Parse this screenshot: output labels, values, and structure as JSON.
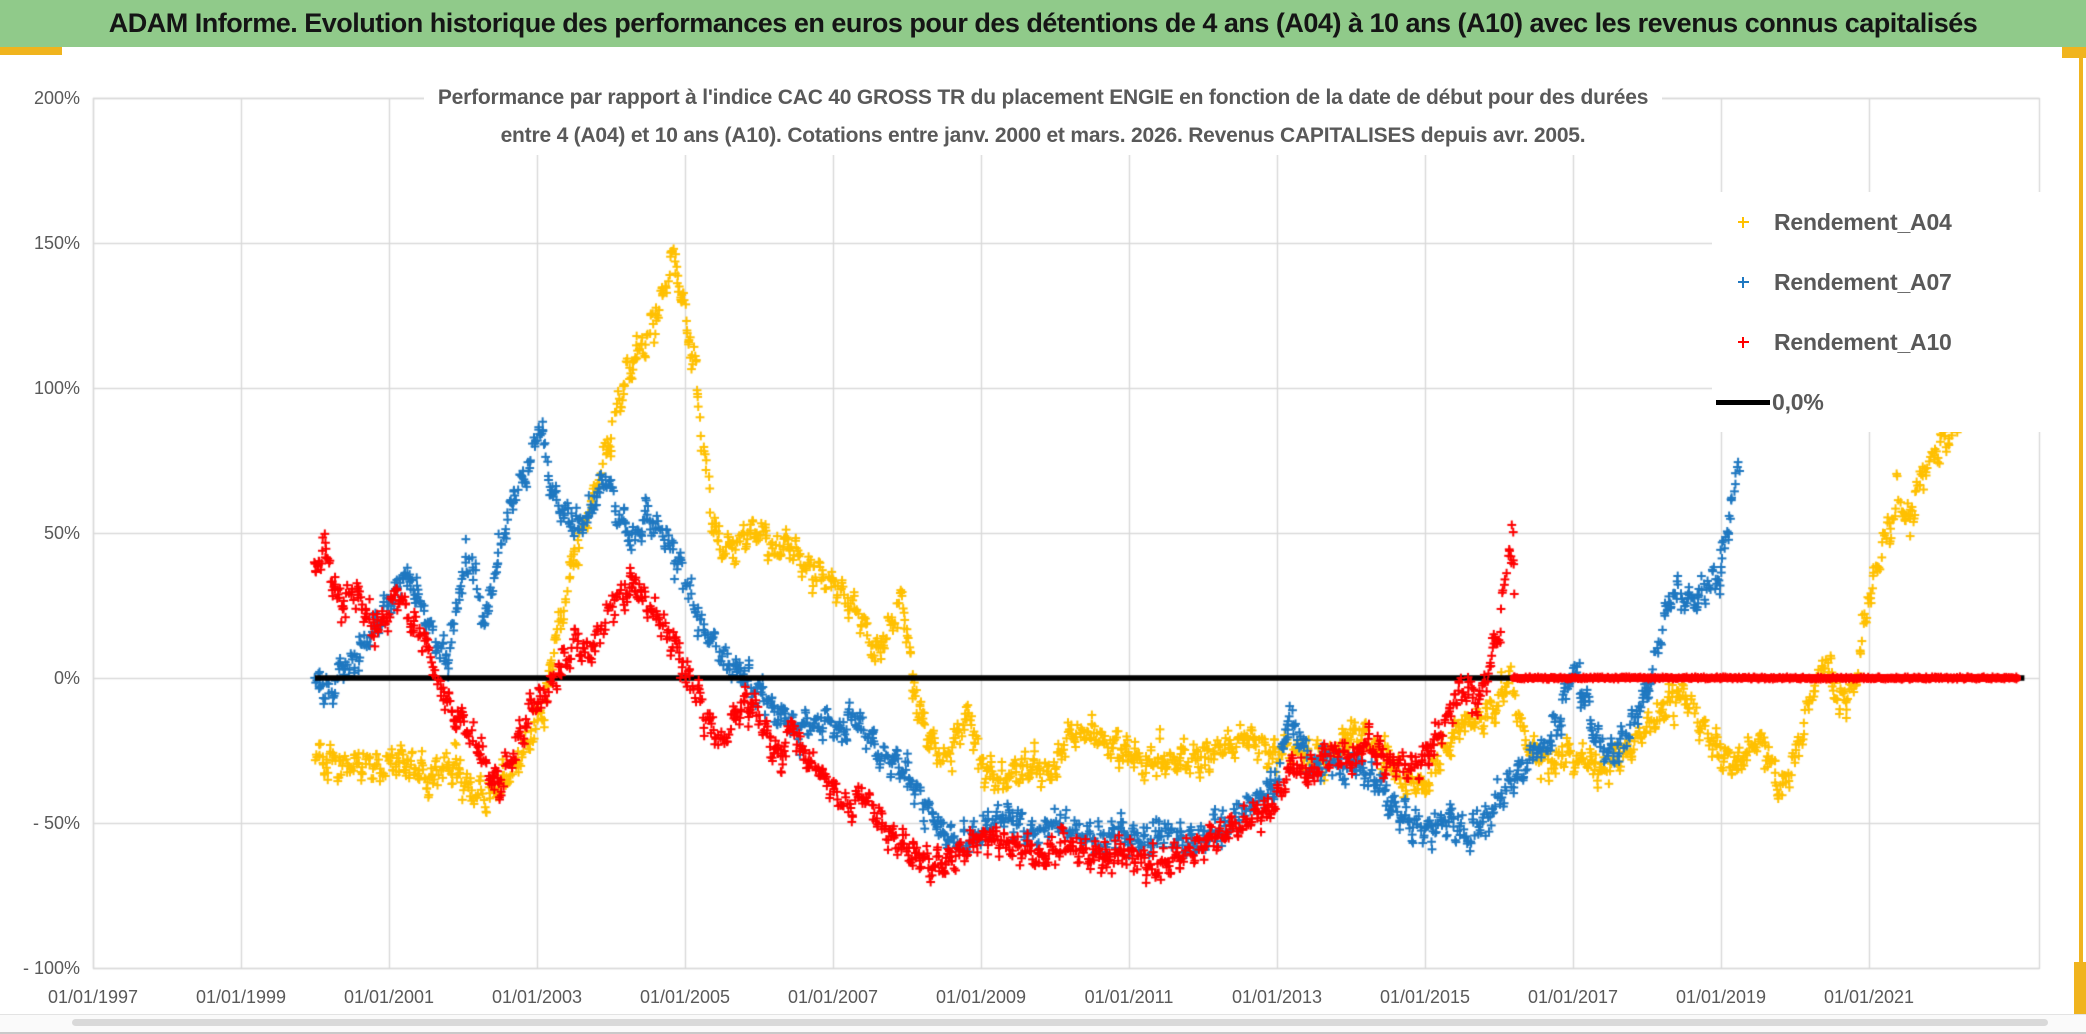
{
  "header": {
    "title": "ADAM Informe. Evolution historique des performances en euros pour des détentions de 4 ans (A04) à 10 ans (A10) avec les revenus connus capitalisés",
    "bg_color": "#90CA8A",
    "accent_color": "#F0B41E"
  },
  "chart_data": {
    "type": "scatter",
    "title_lines": [
      "Performance par rapport à l'indice CAC 40 GROSS TR  du placement ENGIE en fonction de la date de début pour des durées",
      "entre 4 (A04) et 10 ans (A10). Cotations entre janv. 2000 et mars. 2026. Revenus CAPITALISES depuis avr. 2005."
    ],
    "grid": true,
    "gridline_color": "#D9D9D9",
    "x_axis": {
      "range": [
        1997.0,
        2023.35
      ],
      "tick_years": [
        1997,
        1999,
        2001,
        2003,
        2005,
        2007,
        2009,
        2011,
        2013,
        2015,
        2017,
        2019,
        2021
      ],
      "tick_labels": [
        "01/01/1997",
        "01/01/1999",
        "01/01/2001",
        "01/01/2003",
        "01/01/2005",
        "01/01/2007",
        "01/01/2009",
        "01/01/2011",
        "01/01/2013",
        "01/01/2015",
        "01/01/2017",
        "01/01/2019",
        "01/01/2021"
      ]
    },
    "y_axis": {
      "range": [
        -100,
        200
      ],
      "unit": "%",
      "tick_values": [
        200,
        150,
        100,
        50,
        0,
        -50,
        -100
      ],
      "tick_labels": [
        "200%",
        "150%",
        "100%",
        "50%",
        "0%",
        "- 50%",
        "- 100%"
      ]
    },
    "legend": [
      {
        "label": "Rendement_A04",
        "color": "#FFC000",
        "marker": "plus"
      },
      {
        "label": "Rendement_A07",
        "color": "#1F78C1",
        "marker": "plus"
      },
      {
        "label": "Rendement_A10",
        "color": "#FF0000",
        "marker": "plus"
      },
      {
        "label": "0,0%",
        "color": "#000000",
        "marker": "line"
      }
    ],
    "zero_line": {
      "value": 0,
      "x_start": 2000.0,
      "x_end": 2023.1,
      "color": "#000000"
    },
    "series": [
      {
        "name": "Rendement_A04",
        "color": "#FFC000",
        "marker": "plus",
        "anchors": [
          [
            2000.0,
            -25
          ],
          [
            2000.3,
            -30
          ],
          [
            2000.6,
            -28
          ],
          [
            2000.9,
            -32
          ],
          [
            2001.2,
            -28
          ],
          [
            2001.5,
            -35
          ],
          [
            2001.8,
            -30
          ],
          [
            2002.0,
            -35
          ],
          [
            2002.3,
            -42
          ],
          [
            2002.6,
            -35
          ],
          [
            2002.9,
            -22
          ],
          [
            2003.1,
            -8
          ],
          [
            2003.3,
            18
          ],
          [
            2003.5,
            42
          ],
          [
            2003.7,
            58
          ],
          [
            2003.9,
            75
          ],
          [
            2004.1,
            95
          ],
          [
            2004.3,
            110
          ],
          [
            2004.5,
            118
          ],
          [
            2004.7,
            132
          ],
          [
            2004.85,
            148
          ],
          [
            2005.0,
            126
          ],
          [
            2005.15,
            103
          ],
          [
            2005.3,
            68
          ],
          [
            2005.45,
            46
          ],
          [
            2005.65,
            44
          ],
          [
            2005.85,
            50
          ],
          [
            2006.0,
            52
          ],
          [
            2006.2,
            44
          ],
          [
            2006.4,
            47
          ],
          [
            2006.6,
            40
          ],
          [
            2006.8,
            37
          ],
          [
            2007.0,
            33
          ],
          [
            2007.2,
            27
          ],
          [
            2007.4,
            20
          ],
          [
            2007.6,
            9
          ],
          [
            2007.8,
            20
          ],
          [
            2007.95,
            28
          ],
          [
            2008.1,
            -6
          ],
          [
            2008.3,
            -20
          ],
          [
            2008.5,
            -28
          ],
          [
            2008.7,
            -18
          ],
          [
            2008.85,
            -13
          ],
          [
            2009.0,
            -30
          ],
          [
            2009.3,
            -36
          ],
          [
            2009.6,
            -30
          ],
          [
            2009.9,
            -33
          ],
          [
            2010.2,
            -20
          ],
          [
            2010.5,
            -18
          ],
          [
            2010.8,
            -24
          ],
          [
            2011.1,
            -28
          ],
          [
            2011.4,
            -30
          ],
          [
            2011.7,
            -28
          ],
          [
            2012.0,
            -27
          ],
          [
            2012.3,
            -24
          ],
          [
            2012.6,
            -20
          ],
          [
            2012.9,
            -26
          ],
          [
            2013.2,
            -25
          ],
          [
            2013.5,
            -29
          ],
          [
            2013.8,
            -25
          ],
          [
            2014.1,
            -18
          ],
          [
            2014.4,
            -25
          ],
          [
            2014.7,
            -35
          ],
          [
            2015.0,
            -38
          ],
          [
            2015.2,
            -28
          ],
          [
            2015.5,
            -16
          ],
          [
            2015.8,
            -14
          ],
          [
            2016.0,
            -8
          ],
          [
            2016.15,
            0
          ],
          [
            2016.35,
            -22
          ],
          [
            2016.6,
            -30
          ],
          [
            2016.9,
            -26
          ],
          [
            2017.1,
            -28
          ],
          [
            2017.4,
            -32
          ],
          [
            2017.7,
            -25
          ],
          [
            2017.9,
            -20
          ],
          [
            2018.1,
            -14
          ],
          [
            2018.45,
            -4
          ],
          [
            2018.7,
            -15
          ],
          [
            2019.0,
            -26
          ],
          [
            2019.2,
            -30
          ],
          [
            2019.5,
            -20
          ],
          [
            2019.8,
            -38
          ],
          [
            2020.0,
            -28
          ],
          [
            2020.2,
            -8
          ],
          [
            2020.4,
            5
          ],
          [
            2020.6,
            -6
          ],
          [
            2020.8,
            -4
          ],
          [
            2021.0,
            28
          ],
          [
            2021.2,
            46
          ],
          [
            2021.4,
            60
          ],
          [
            2021.55,
            54
          ],
          [
            2021.7,
            68
          ],
          [
            2021.85,
            76
          ],
          [
            2022.0,
            82
          ],
          [
            2022.2,
            88
          ]
        ]
      },
      {
        "name": "Rendement_A07",
        "color": "#1F78C1",
        "marker": "plus",
        "anchors": [
          [
            2000.0,
            0
          ],
          [
            2000.2,
            -5
          ],
          [
            2000.4,
            3
          ],
          [
            2000.6,
            8
          ],
          [
            2000.8,
            18
          ],
          [
            2001.0,
            25
          ],
          [
            2001.2,
            35
          ],
          [
            2001.4,
            28
          ],
          [
            2001.6,
            14
          ],
          [
            2001.8,
            5
          ],
          [
            2001.95,
            30
          ],
          [
            2002.1,
            42
          ],
          [
            2002.3,
            20
          ],
          [
            2002.5,
            45
          ],
          [
            2002.7,
            64
          ],
          [
            2002.9,
            74
          ],
          [
            2003.05,
            88
          ],
          [
            2003.2,
            64
          ],
          [
            2003.4,
            55
          ],
          [
            2003.6,
            52
          ],
          [
            2003.8,
            62
          ],
          [
            2003.95,
            70
          ],
          [
            2004.1,
            55
          ],
          [
            2004.3,
            48
          ],
          [
            2004.5,
            55
          ],
          [
            2004.7,
            50
          ],
          [
            2004.9,
            40
          ],
          [
            2005.1,
            28
          ],
          [
            2005.25,
            16
          ],
          [
            2005.4,
            12
          ],
          [
            2005.6,
            4
          ],
          [
            2005.8,
            1
          ],
          [
            2006.0,
            -5
          ],
          [
            2006.3,
            -13
          ],
          [
            2006.6,
            -18
          ],
          [
            2006.9,
            -14
          ],
          [
            2007.1,
            -20
          ],
          [
            2007.3,
            -14
          ],
          [
            2007.6,
            -25
          ],
          [
            2007.9,
            -30
          ],
          [
            2008.2,
            -42
          ],
          [
            2008.5,
            -53
          ],
          [
            2008.8,
            -58
          ],
          [
            2009.1,
            -50
          ],
          [
            2009.4,
            -48
          ],
          [
            2009.7,
            -55
          ],
          [
            2010.0,
            -50
          ],
          [
            2010.3,
            -53
          ],
          [
            2010.6,
            -57
          ],
          [
            2010.9,
            -52
          ],
          [
            2011.2,
            -57
          ],
          [
            2011.5,
            -53
          ],
          [
            2011.8,
            -57
          ],
          [
            2012.1,
            -54
          ],
          [
            2012.4,
            -48
          ],
          [
            2012.7,
            -43
          ],
          [
            2013.0,
            -36
          ],
          [
            2013.15,
            -12
          ],
          [
            2013.3,
            -22
          ],
          [
            2013.5,
            -32
          ],
          [
            2013.7,
            -28
          ],
          [
            2013.9,
            -32
          ],
          [
            2014.1,
            -30
          ],
          [
            2014.4,
            -38
          ],
          [
            2014.7,
            -48
          ],
          [
            2015.0,
            -53
          ],
          [
            2015.3,
            -49
          ],
          [
            2015.6,
            -55
          ],
          [
            2015.9,
            -47
          ],
          [
            2016.1,
            -38
          ],
          [
            2016.4,
            -27
          ],
          [
            2016.6,
            -24
          ],
          [
            2016.85,
            -12
          ],
          [
            2017.0,
            4
          ],
          [
            2017.15,
            -6
          ],
          [
            2017.3,
            -20
          ],
          [
            2017.5,
            -27
          ],
          [
            2017.7,
            -21
          ],
          [
            2017.9,
            -11
          ],
          [
            2018.05,
            0
          ],
          [
            2018.2,
            16
          ],
          [
            2018.35,
            30
          ],
          [
            2018.55,
            26
          ],
          [
            2018.75,
            30
          ],
          [
            2018.95,
            34
          ],
          [
            2019.05,
            45
          ],
          [
            2019.15,
            60
          ],
          [
            2019.25,
            74
          ]
        ]
      },
      {
        "name": "Rendement_A10",
        "color": "#FF0000",
        "marker": "plus",
        "anchors": [
          [
            2000.0,
            38
          ],
          [
            2000.15,
            45
          ],
          [
            2000.3,
            25
          ],
          [
            2000.5,
            30
          ],
          [
            2000.7,
            22
          ],
          [
            2000.9,
            18
          ],
          [
            2001.1,
            30
          ],
          [
            2001.3,
            20
          ],
          [
            2001.5,
            12
          ],
          [
            2001.7,
            -5
          ],
          [
            2001.9,
            -12
          ],
          [
            2002.1,
            -20
          ],
          [
            2002.3,
            -30
          ],
          [
            2002.5,
            -38
          ],
          [
            2002.7,
            -25
          ],
          [
            2002.9,
            -12
          ],
          [
            2003.1,
            -5
          ],
          [
            2003.3,
            2
          ],
          [
            2003.5,
            12
          ],
          [
            2003.7,
            8
          ],
          [
            2003.9,
            18
          ],
          [
            2004.1,
            28
          ],
          [
            2004.3,
            33
          ],
          [
            2004.5,
            25
          ],
          [
            2004.7,
            18
          ],
          [
            2004.9,
            10
          ],
          [
            2005.1,
            -2
          ],
          [
            2005.3,
            -14
          ],
          [
            2005.5,
            -22
          ],
          [
            2005.7,
            -12
          ],
          [
            2005.9,
            -8
          ],
          [
            2006.1,
            -20
          ],
          [
            2006.3,
            -28
          ],
          [
            2006.45,
            -16
          ],
          [
            2006.6,
            -28
          ],
          [
            2006.8,
            -32
          ],
          [
            2007.0,
            -38
          ],
          [
            2007.2,
            -44
          ],
          [
            2007.4,
            -40
          ],
          [
            2007.6,
            -48
          ],
          [
            2007.8,
            -55
          ],
          [
            2008.0,
            -58
          ],
          [
            2008.3,
            -66
          ],
          [
            2008.6,
            -62
          ],
          [
            2008.9,
            -57
          ],
          [
            2009.2,
            -54
          ],
          [
            2009.5,
            -58
          ],
          [
            2009.8,
            -62
          ],
          [
            2010.1,
            -57
          ],
          [
            2010.4,
            -60
          ],
          [
            2010.7,
            -63
          ],
          [
            2011.0,
            -60
          ],
          [
            2011.3,
            -66
          ],
          [
            2011.6,
            -62
          ],
          [
            2011.9,
            -58
          ],
          [
            2012.2,
            -55
          ],
          [
            2012.5,
            -50
          ],
          [
            2012.8,
            -47
          ],
          [
            2013.0,
            -43
          ],
          [
            2013.2,
            -30
          ],
          [
            2013.4,
            -34
          ],
          [
            2013.6,
            -28
          ],
          [
            2013.8,
            -25
          ],
          [
            2014.0,
            -29
          ],
          [
            2014.2,
            -22
          ],
          [
            2014.5,
            -29
          ],
          [
            2014.8,
            -31
          ],
          [
            2015.0,
            -27
          ],
          [
            2015.2,
            -20
          ],
          [
            2015.4,
            -8
          ],
          [
            2015.55,
            -3
          ],
          [
            2015.7,
            -10
          ],
          [
            2015.85,
            2
          ],
          [
            2016.0,
            15
          ],
          [
            2016.1,
            35
          ],
          [
            2016.18,
            55
          ],
          [
            2016.22,
            30
          ]
        ],
        "flat_segment": {
          "from": 2016.2,
          "to": 2023.0,
          "value": 0
        }
      }
    ]
  }
}
